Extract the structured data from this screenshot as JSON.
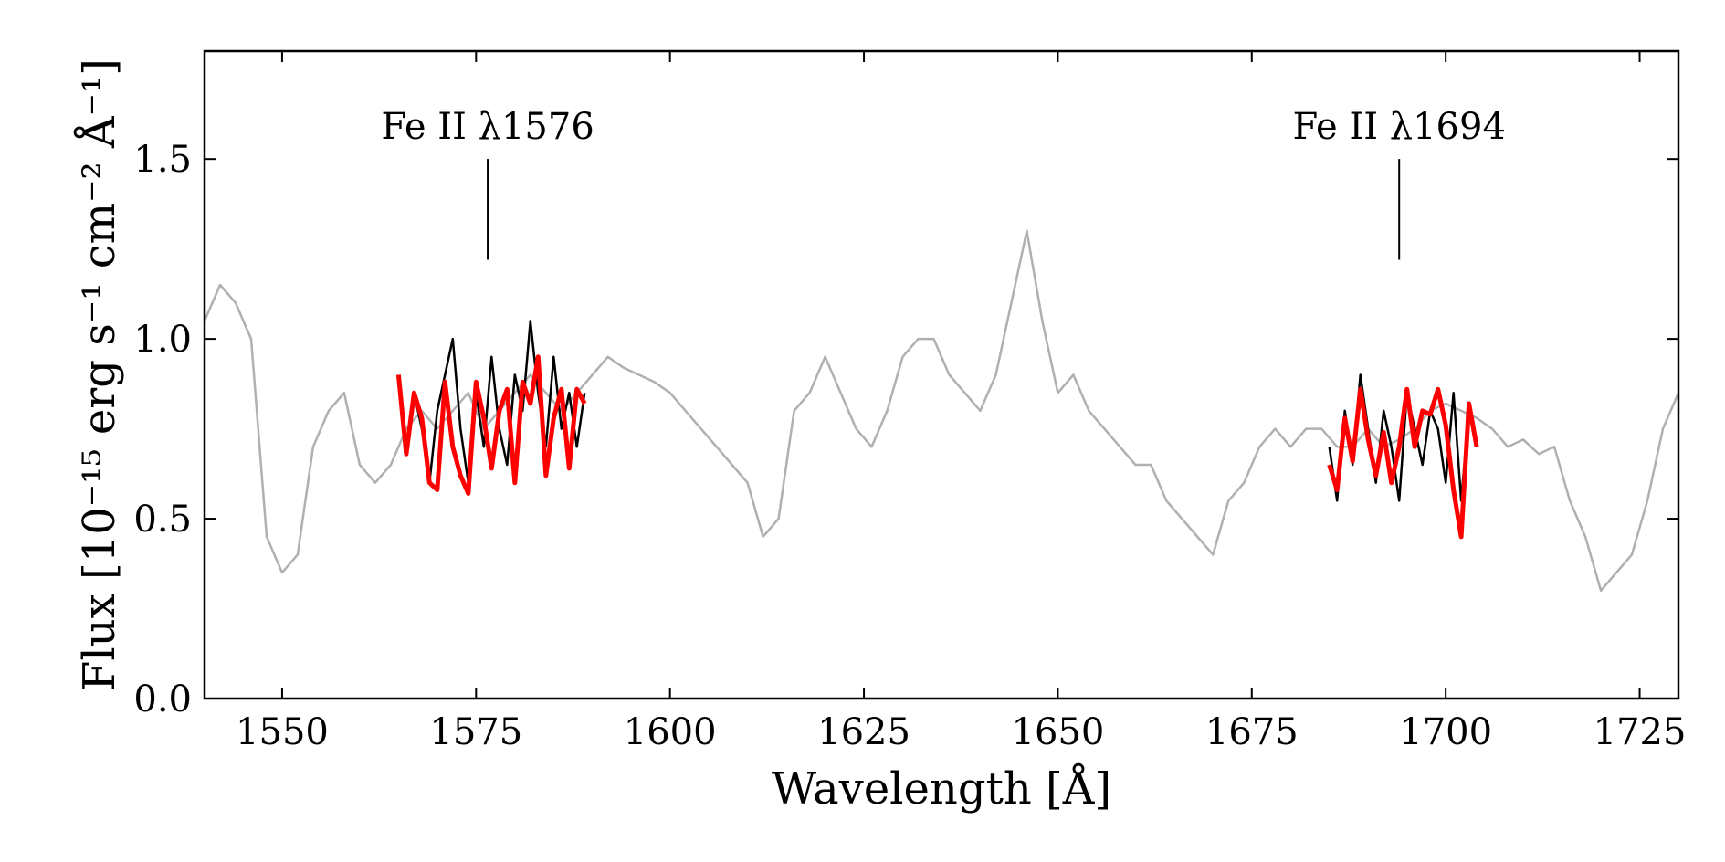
{
  "chart_data": {
    "type": "line",
    "title": "",
    "xlabel": "Wavelength [Å]",
    "ylabel": "Flux [10⁻¹⁵ erg s⁻¹ cm⁻² Å⁻¹]",
    "xlim": [
      1540,
      1730
    ],
    "ylim": [
      0.0,
      1.8
    ],
    "xticks": [
      1550,
      1575,
      1600,
      1625,
      1650,
      1675,
      1700,
      1725
    ],
    "yticks": [
      0.0,
      0.5,
      1.0,
      1.5
    ],
    "xtick_labels": [
      "1550",
      "1575",
      "1600",
      "1625",
      "1650",
      "1675",
      "1700",
      "1725"
    ],
    "ytick_labels": [
      "0.0",
      "0.5",
      "1.0",
      "1.5"
    ],
    "grid": false,
    "colors": {
      "spectrum": "#b0b0b0",
      "fit_window": "#000000",
      "model": "#ff0000"
    },
    "series": [
      {
        "role": "spectrum",
        "x": [
          1540,
          1542,
          1544,
          1546,
          1548,
          1550,
          1552,
          1554,
          1556,
          1558,
          1560,
          1562,
          1564,
          1566,
          1568,
          1570,
          1572,
          1574,
          1576,
          1578,
          1580,
          1582,
          1584,
          1586,
          1588,
          1590,
          1592,
          1594,
          1596,
          1598,
          1600,
          1602,
          1604,
          1606,
          1608,
          1610,
          1612,
          1614,
          1616,
          1618,
          1620,
          1622,
          1624,
          1626,
          1628,
          1630,
          1632,
          1634,
          1636,
          1638,
          1640,
          1642,
          1644,
          1646,
          1648,
          1650,
          1652,
          1654,
          1656,
          1658,
          1660,
          1662,
          1664,
          1666,
          1668,
          1670,
          1672,
          1674,
          1676,
          1678,
          1680,
          1682,
          1684,
          1686,
          1688,
          1690,
          1692,
          1694,
          1696,
          1698,
          1700,
          1702,
          1704,
          1706,
          1708,
          1710,
          1712,
          1714,
          1716,
          1718,
          1720,
          1722,
          1724,
          1726,
          1728,
          1730
        ],
        "y": [
          1.05,
          1.15,
          1.1,
          1.0,
          0.45,
          0.35,
          0.4,
          0.7,
          0.8,
          0.85,
          0.65,
          0.6,
          0.65,
          0.75,
          0.8,
          0.75,
          0.8,
          0.85,
          0.75,
          0.8,
          0.85,
          0.9,
          0.85,
          0.8,
          0.85,
          0.9,
          0.95,
          0.92,
          0.9,
          0.88,
          0.85,
          0.8,
          0.75,
          0.7,
          0.65,
          0.6,
          0.45,
          0.5,
          0.8,
          0.85,
          0.95,
          0.85,
          0.75,
          0.7,
          0.8,
          0.95,
          1.0,
          1.0,
          0.9,
          0.85,
          0.8,
          0.9,
          1.1,
          1.3,
          1.05,
          0.85,
          0.9,
          0.8,
          0.75,
          0.7,
          0.65,
          0.65,
          0.55,
          0.5,
          0.45,
          0.4,
          0.55,
          0.6,
          0.7,
          0.75,
          0.7,
          0.75,
          0.75,
          0.7,
          0.7,
          0.75,
          0.7,
          0.72,
          0.75,
          0.8,
          0.82,
          0.8,
          0.78,
          0.75,
          0.7,
          0.72,
          0.68,
          0.7,
          0.55,
          0.45,
          0.3,
          0.35,
          0.4,
          0.55,
          0.75,
          0.85
        ]
      },
      {
        "role": "fit_window",
        "x": [
          1565,
          1566,
          1567,
          1568,
          1569,
          1570,
          1571,
          1572,
          1573,
          1574,
          1575,
          1576,
          1577,
          1578,
          1579,
          1580,
          1581,
          1582,
          1583,
          1584,
          1585,
          1586,
          1587,
          1588,
          1589
        ],
        "y": [
          0.9,
          0.7,
          0.85,
          0.75,
          0.6,
          0.8,
          0.9,
          1.0,
          0.75,
          0.6,
          0.85,
          0.7,
          0.95,
          0.75,
          0.65,
          0.9,
          0.8,
          1.05,
          0.85,
          0.7,
          0.95,
          0.75,
          0.85,
          0.7,
          0.85
        ]
      },
      {
        "role": "fit_window",
        "x": [
          1685,
          1686,
          1687,
          1688,
          1689,
          1690,
          1691,
          1692,
          1693,
          1694,
          1695,
          1696,
          1697,
          1698,
          1699,
          1700,
          1701,
          1702,
          1703,
          1704
        ],
        "y": [
          0.7,
          0.55,
          0.8,
          0.65,
          0.9,
          0.75,
          0.6,
          0.8,
          0.7,
          0.55,
          0.85,
          0.75,
          0.65,
          0.8,
          0.75,
          0.6,
          0.85,
          0.55,
          0.8,
          0.7
        ]
      },
      {
        "role": "model",
        "x": [
          1565,
          1566,
          1567,
          1568,
          1569,
          1570,
          1571,
          1572,
          1573,
          1574,
          1575,
          1576,
          1577,
          1578,
          1579,
          1580,
          1581,
          1582,
          1583,
          1584,
          1585,
          1586,
          1587,
          1588,
          1589
        ],
        "y": [
          0.9,
          0.68,
          0.85,
          0.78,
          0.6,
          0.58,
          0.88,
          0.7,
          0.62,
          0.57,
          0.88,
          0.78,
          0.64,
          0.8,
          0.86,
          0.6,
          0.88,
          0.82,
          0.95,
          0.62,
          0.78,
          0.86,
          0.64,
          0.86,
          0.82
        ]
      },
      {
        "role": "model",
        "x": [
          1685,
          1686,
          1687,
          1688,
          1689,
          1690,
          1691,
          1692,
          1693,
          1694,
          1695,
          1696,
          1697,
          1698,
          1699,
          1700,
          1701,
          1702,
          1703,
          1704
        ],
        "y": [
          0.65,
          0.58,
          0.78,
          0.66,
          0.86,
          0.72,
          0.62,
          0.74,
          0.6,
          0.7,
          0.86,
          0.7,
          0.8,
          0.79,
          0.86,
          0.76,
          0.58,
          0.45,
          0.82,
          0.7
        ]
      }
    ],
    "annotations": [
      {
        "label": "Fe II λ1576",
        "x": 1576.5,
        "y_top": 1.5,
        "y_bottom": 1.22
      },
      {
        "label": "Fe II λ1694",
        "x": 1694.0,
        "y_top": 1.5,
        "y_bottom": 1.22
      }
    ]
  }
}
